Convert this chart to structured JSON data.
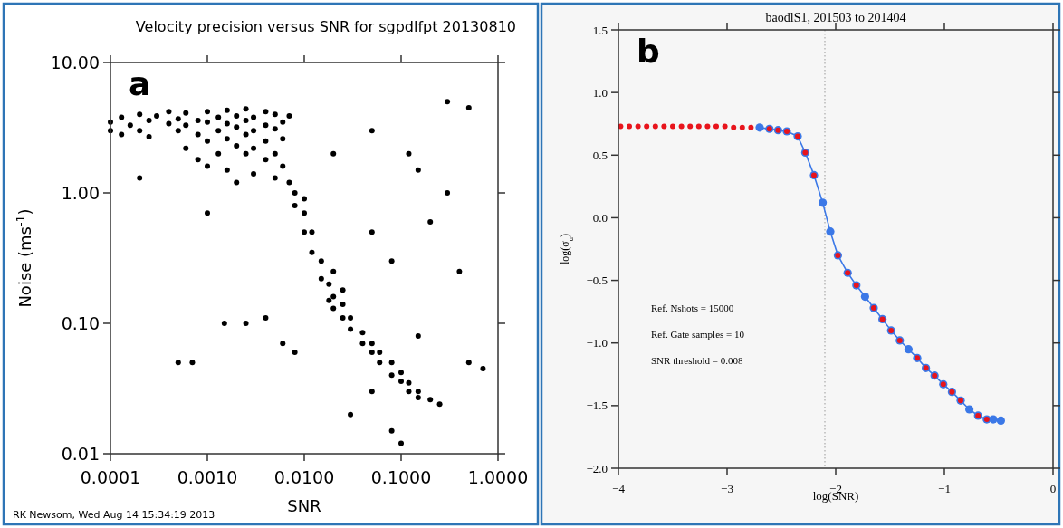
{
  "chart_data": [
    {
      "type": "scatter",
      "title": "Velocity precision versus SNR for sgpdlfpt 20130810",
      "xlabel": "SNR",
      "ylabel": "Noise (ms$^{-1}$)",
      "annotations": [
        "a",
        "RK Newsom, Wed Aug 14 15:34:19 2013"
      ],
      "log": "xy",
      "marker": "circle",
      "color": "#000000",
      "x": [
        0.0001,
        0.0001,
        0.00013,
        0.00013,
        0.00016,
        0.0002,
        0.0002,
        0.00025,
        0.00025,
        0.0003,
        0.0004,
        0.0004,
        0.0005,
        0.0005,
        0.0006,
        0.0006,
        0.0006,
        0.0008,
        0.0008,
        0.0008,
        0.001,
        0.001,
        0.001,
        0.001,
        0.0013,
        0.0013,
        0.0013,
        0.0016,
        0.0016,
        0.0016,
        0.0016,
        0.002,
        0.002,
        0.002,
        0.002,
        0.0025,
        0.0025,
        0.0025,
        0.0025,
        0.003,
        0.003,
        0.003,
        0.003,
        0.004,
        0.004,
        0.004,
        0.004,
        0.005,
        0.005,
        0.005,
        0.005,
        0.006,
        0.006,
        0.006,
        0.007,
        0.007,
        0.008,
        0.008,
        0.01,
        0.01,
        0.01,
        0.012,
        0.012,
        0.015,
        0.015,
        0.018,
        0.018,
        0.02,
        0.02,
        0.025,
        0.025,
        0.025,
        0.03,
        0.03,
        0.04,
        0.04,
        0.05,
        0.05,
        0.06,
        0.06,
        0.08,
        0.08,
        0.1,
        0.1,
        0.12,
        0.12,
        0.15,
        0.15,
        0.2,
        0.25,
        0.0005,
        0.0007,
        0.0015,
        0.0025,
        0.004,
        0.006,
        0.008,
        0.02,
        0.05,
        0.08,
        0.12,
        0.15,
        0.3,
        0.5,
        0.4,
        0.5,
        0.03,
        0.08,
        0.1,
        0.7,
        0.05,
        0.02,
        0.2,
        0.05,
        0.001,
        0.0002,
        0.3,
        0.15
      ],
      "values": [
        3.5,
        3.0,
        3.8,
        2.8,
        3.3,
        4.0,
        3.0,
        3.6,
        2.7,
        3.9,
        3.4,
        4.2,
        3.7,
        3.0,
        4.1,
        3.3,
        2.2,
        3.6,
        2.8,
        1.8,
        4.2,
        3.5,
        2.5,
        1.6,
        3.8,
        3.0,
        2.0,
        4.3,
        3.4,
        2.6,
        1.5,
        3.9,
        3.2,
        2.3,
        1.2,
        4.4,
        3.6,
        2.8,
        2.0,
        3.8,
        3.0,
        2.2,
        1.4,
        4.2,
        3.3,
        2.5,
        1.8,
        4.0,
        3.1,
        2.0,
        1.3,
        3.5,
        2.6,
        1.6,
        3.9,
        1.2,
        1.0,
        0.8,
        0.7,
        0.5,
        0.9,
        0.5,
        0.35,
        0.3,
        0.22,
        0.2,
        0.15,
        0.16,
        0.13,
        0.14,
        0.11,
        0.18,
        0.11,
        0.09,
        0.085,
        0.07,
        0.07,
        0.06,
        0.06,
        0.05,
        0.05,
        0.04,
        0.042,
        0.036,
        0.035,
        0.03,
        0.03,
        0.027,
        0.026,
        0.024,
        0.05,
        0.05,
        0.1,
        0.1,
        0.11,
        0.07,
        0.06,
        0.25,
        0.5,
        0.3,
        2.0,
        1.5,
        5.0,
        4.5,
        0.25,
        0.05,
        0.02,
        0.015,
        0.012,
        0.045,
        3.0,
        2.0,
        0.6,
        0.03,
        0.7,
        1.3,
        1.0,
        0.08
      ],
      "xlim": [
        0.0001,
        1
      ],
      "ylim": [
        0.01,
        10
      ],
      "xticks": [
        {
          "value": 0.0001,
          "label": "0.0001"
        },
        {
          "value": 0.001,
          "label": "0.0010"
        },
        {
          "value": 0.01,
          "label": "0.0100"
        },
        {
          "value": 0.1,
          "label": "0.1000"
        },
        {
          "value": 1,
          "label": "1.0000"
        }
      ],
      "yticks": [
        {
          "value": 0.01,
          "label": "0.01"
        },
        {
          "value": 0.1,
          "label": "0.10"
        },
        {
          "value": 1,
          "label": "1.00"
        },
        {
          "value": 10,
          "label": "10.00"
        }
      ]
    },
    {
      "type": "line",
      "title": "baodlS1, 201503 to 201404",
      "xlabel": "log(SNR)",
      "ylabel": "log(σ$_{u}$)",
      "annotations": [
        "b",
        "Ref. Nshots = 15000",
        "Ref. Gate samples = 10",
        "SNR threshold = 0.008"
      ],
      "series": [
        {
          "type": "line",
          "color": "#3b78e7",
          "marker": "circle",
          "x": [
            -2.7,
            -2.61,
            -2.53,
            -2.45,
            -2.35,
            -2.28,
            -2.2,
            -2.12,
            -2.05,
            -1.98,
            -1.89,
            -1.81,
            -1.73,
            -1.65,
            -1.57,
            -1.49,
            -1.41,
            -1.33,
            -1.25,
            -1.17,
            -1.09,
            -1.01,
            -0.93,
            -0.85,
            -0.77,
            -0.69,
            -0.61,
            -0.55,
            -0.48
          ],
          "values": [
            0.72,
            0.71,
            0.7,
            0.69,
            0.65,
            0.52,
            0.34,
            0.12,
            -0.11,
            -0.3,
            -0.44,
            -0.54,
            -0.63,
            -0.72,
            -0.81,
            -0.9,
            -0.98,
            -1.05,
            -1.12,
            -1.2,
            -1.26,
            -1.33,
            -1.39,
            -1.46,
            -1.53,
            -1.58,
            -1.61,
            -1.61,
            -1.62
          ]
        },
        {
          "type": "scatter",
          "color": "#e8141c",
          "marker": "circle",
          "x": [
            -3.98,
            -3.9,
            -3.82,
            -3.74,
            -3.66,
            -3.58,
            -3.5,
            -3.42,
            -3.34,
            -3.26,
            -3.18,
            -3.1,
            -3.02,
            -2.94,
            -2.86,
            -2.78,
            -2.61,
            -2.53,
            -2.45,
            -2.35,
            -2.28,
            -2.2,
            -1.98,
            -1.89,
            -1.81,
            -1.65,
            -1.57,
            -1.49,
            -1.41,
            -1.25,
            -1.17,
            -1.09,
            -1.01,
            -0.93,
            -0.85,
            -0.69,
            -0.61
          ],
          "values": [
            0.73,
            0.73,
            0.73,
            0.73,
            0.73,
            0.73,
            0.73,
            0.73,
            0.73,
            0.73,
            0.73,
            0.73,
            0.73,
            0.72,
            0.72,
            0.72,
            0.71,
            0.7,
            0.69,
            0.65,
            0.52,
            0.34,
            -0.3,
            -0.44,
            -0.54,
            -0.72,
            -0.81,
            -0.9,
            -0.98,
            -1.12,
            -1.2,
            -1.26,
            -1.33,
            -1.39,
            -1.46,
            -1.58,
            -1.61
          ]
        }
      ],
      "xlim": [
        -4,
        0
      ],
      "ylim": [
        -2,
        1.5
      ],
      "xticks": [
        {
          "value": -4,
          "label": "−4"
        },
        {
          "value": -3,
          "label": "−3"
        },
        {
          "value": -2,
          "label": "−2"
        },
        {
          "value": -1,
          "label": "−1"
        },
        {
          "value": 0,
          "label": "0"
        }
      ],
      "yticks": [
        {
          "value": -2,
          "label": "−2.0"
        },
        {
          "value": -1.5,
          "label": "−1.5"
        },
        {
          "value": -1,
          "label": "−1.0"
        },
        {
          "value": -0.5,
          "label": "−0.5"
        },
        {
          "value": 0,
          "label": "0.0"
        },
        {
          "value": 0.5,
          "label": "0.5"
        },
        {
          "value": 1,
          "label": "1.0"
        },
        {
          "value": 1.5,
          "label": "1.5"
        }
      ],
      "ref_lines": [
        {
          "axis": "x",
          "value": -2.1,
          "color": "#999999",
          "line_style": "dotted"
        }
      ]
    }
  ]
}
